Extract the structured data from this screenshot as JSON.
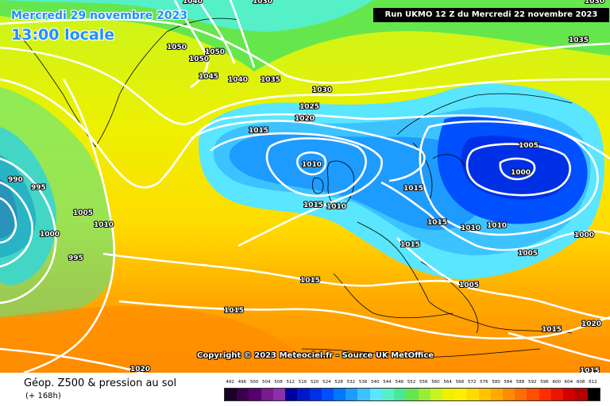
{
  "map": {
    "date_label": "Mercredi 29 novembre 2023",
    "time_label": "13:00 locale",
    "run_label": "Run UKMO 12 Z du Mercredi 22 novembre 2023",
    "copyright": "Copyright © 2023 Meteociel.fr - Source UK MetOffice",
    "isobar_labels": [
      "1040",
      "1030",
      "1050",
      "1050",
      "1050",
      "1045",
      "1040",
      "1035",
      "1030",
      "1035",
      "1030",
      "1025",
      "1020",
      "1015",
      "1010",
      "1015",
      "1010",
      "1015",
      "1010",
      "1005",
      "1000",
      "1005",
      "1000",
      "990",
      "995",
      "1005",
      "1010",
      "1000",
      "995",
      "1015",
      "1015",
      "1015",
      "1015",
      "1005",
      "1015",
      "1020",
      "1015",
      "1020",
      "1010"
    ],
    "pressure_center_labels": [
      "1005",
      "1000"
    ]
  },
  "footer": {
    "title": "Géop. Z500 & pression au sol",
    "subtitle": "(+ 168h)",
    "scale_labels": [
      "492",
      "496",
      "500",
      "504",
      "508",
      "512",
      "516",
      "520",
      "524",
      "528",
      "532",
      "536",
      "540",
      "544",
      "548",
      "552",
      "556",
      "560",
      "564",
      "568",
      "572",
      "576",
      "580",
      "584",
      "588",
      "592",
      "596",
      "600",
      "604",
      "608",
      "612"
    ],
    "scale_colors": [
      "#1a0026",
      "#3a004d",
      "#55006e",
      "#7a1a8c",
      "#8f2fa8",
      "#0000a0",
      "#0018c8",
      "#0030e6",
      "#0050ff",
      "#0078ff",
      "#1e9bff",
      "#3cc3ff",
      "#5ae6ff",
      "#55f0c8",
      "#4be696",
      "#66e64d",
      "#99ee33",
      "#c8f51e",
      "#eef000",
      "#fff000",
      "#ffdc00",
      "#ffc300",
      "#ffaa00",
      "#ff8c00",
      "#ff6e00",
      "#ff5000",
      "#ff2d00",
      "#eb1400",
      "#d20000",
      "#b40000",
      "#000000"
    ]
  }
}
